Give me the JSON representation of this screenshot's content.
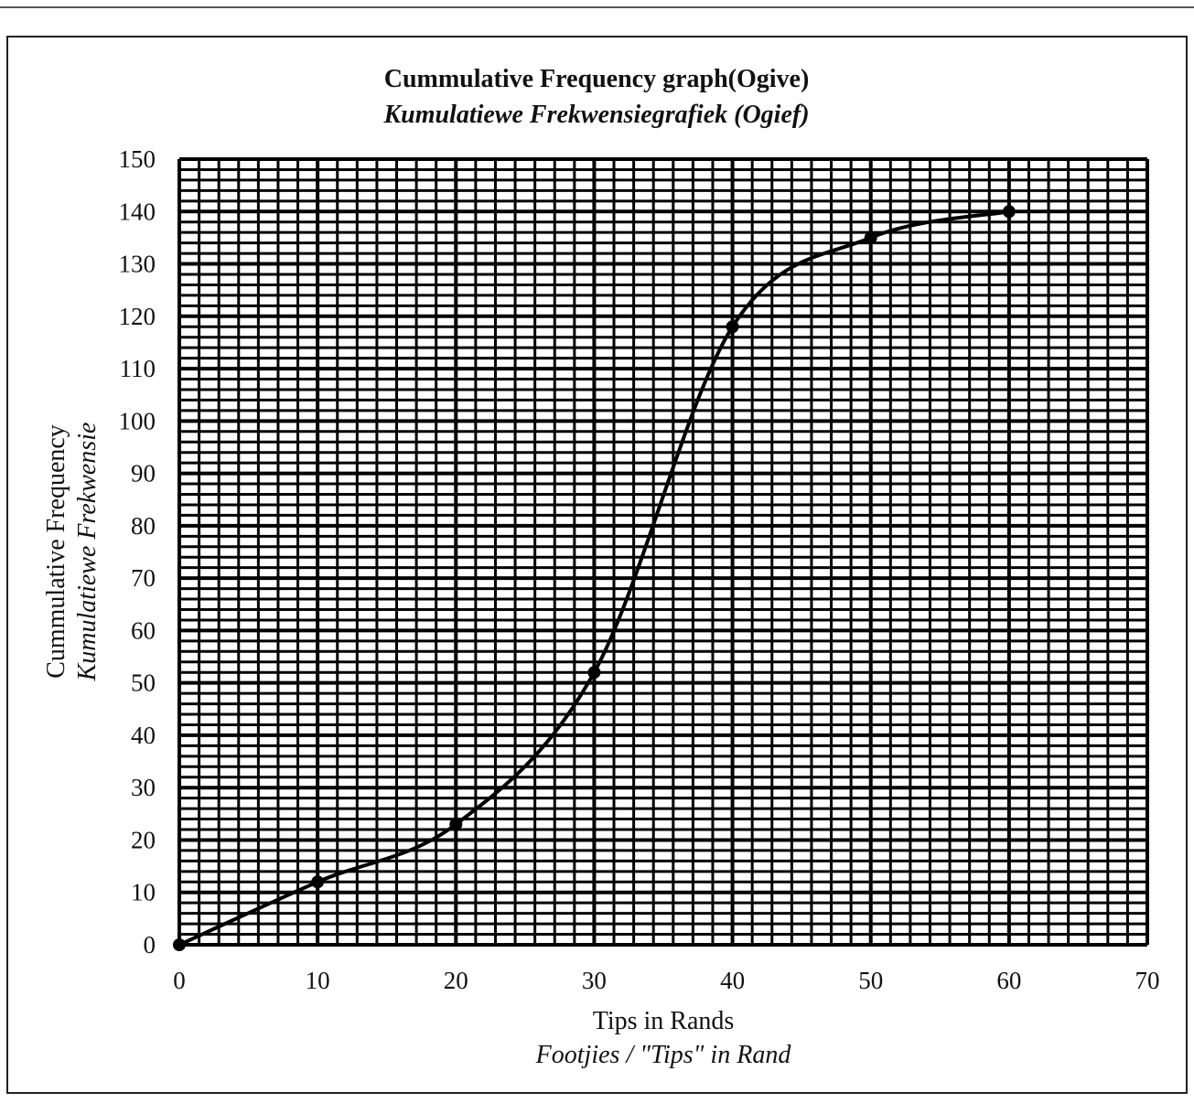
{
  "chart_data": {
    "type": "line",
    "title": "Cummulative Frequency graph(Ogive)",
    "subtitle": "Kumulatiewe Frekwensiegrafiek (Ogief)",
    "x_label": "Tips in Rands",
    "x_label_translation": "Footjies / \"Tips\" in Rand",
    "y_label": "Cummulative Frequency",
    "y_label_translation": "Kumulatiewe Frekwensie",
    "x": [
      0,
      10,
      20,
      30,
      40,
      50,
      60
    ],
    "series": [
      {
        "color": "#000000",
        "values": [
          0,
          12,
          23,
          52,
          118,
          135,
          140
        ]
      }
    ],
    "xlim": [
      0,
      70
    ],
    "xticks": [
      0,
      10,
      20,
      30,
      40,
      50,
      60,
      70
    ],
    "ylim": [
      0,
      150
    ],
    "yticks": [
      0,
      10,
      20,
      30,
      40,
      50,
      60,
      70,
      80,
      90,
      100,
      110,
      120,
      130,
      140,
      150
    ],
    "grid": true,
    "smooth": true
  }
}
